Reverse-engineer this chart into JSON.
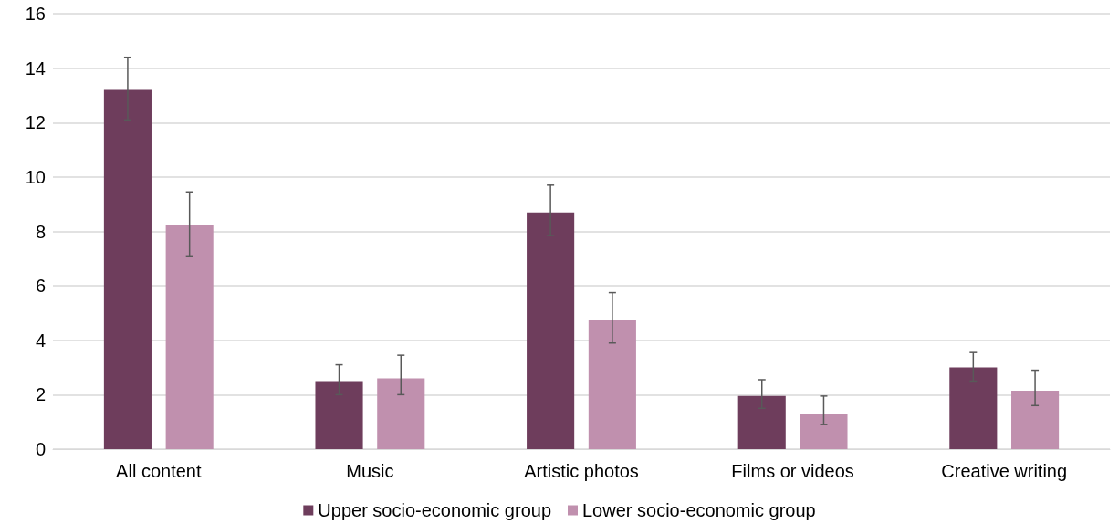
{
  "chart_data": {
    "type": "bar",
    "categories": [
      "All content",
      "Music",
      "Artistic photos",
      "Films or videos",
      "Creative writing"
    ],
    "series": [
      {
        "name": "Upper socio-economic group",
        "color": "#6e3d5c",
        "values": [
          13.2,
          2.5,
          8.7,
          1.95,
          3.0
        ],
        "errors": [
          [
            12.1,
            14.4
          ],
          [
            2.0,
            3.1
          ],
          [
            7.85,
            9.7
          ],
          [
            1.5,
            2.55
          ],
          [
            2.5,
            3.55
          ]
        ]
      },
      {
        "name": "Lower socio-economic group",
        "color": "#c090ae",
        "values": [
          8.25,
          2.6,
          4.75,
          1.3,
          2.15
        ],
        "errors": [
          [
            7.1,
            9.45
          ],
          [
            2.0,
            3.45
          ],
          [
            3.9,
            5.75
          ],
          [
            0.9,
            1.95
          ],
          [
            1.6,
            2.9
          ]
        ]
      }
    ],
    "ylim": [
      0,
      16
    ],
    "yticks": [
      0,
      2,
      4,
      6,
      8,
      10,
      12,
      14,
      16
    ],
    "grid": "y",
    "legend": "bottom"
  }
}
